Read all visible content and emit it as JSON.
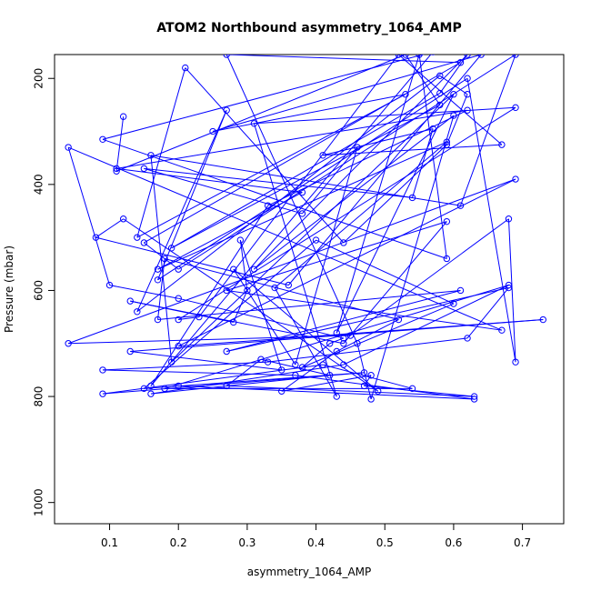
{
  "chart_data": {
    "type": "line",
    "title": "ATOM2 Northbound asymmetry_1064_AMP",
    "xlabel": "asymmetry_1064_AMP",
    "ylabel": "Pressure (mbar)",
    "xlim": [
      0.02,
      0.76
    ],
    "ylim": [
      1040,
      155
    ],
    "y_reversed": true,
    "x_ticks": [
      0.1,
      0.2,
      0.3,
      0.4,
      0.5,
      0.6,
      0.7
    ],
    "x_tick_labels": [
      "0.1",
      "0.2",
      "0.3",
      "0.4",
      "0.5",
      "0.6",
      "0.7"
    ],
    "y_ticks": [
      200,
      400,
      600,
      800,
      1000
    ],
    "y_tick_labels": [
      "200",
      "400",
      "600",
      "800",
      "1000"
    ],
    "grid": false,
    "series": [
      {
        "color": "#0000ff",
        "marker": "open-circle",
        "x": [
          0.12,
          0.11,
          0.53,
          0.58,
          0.19,
          0.58,
          0.62,
          0.31,
          0.6,
          0.48,
          0.46,
          0.27,
          0.61,
          0.15,
          0.2,
          0.69,
          0.61,
          0.16,
          0.19,
          0.6,
          0.43,
          0.55,
          0.59,
          0.09,
          0.57,
          0.16,
          0.33,
          0.62,
          0.11,
          0.38,
          0.17,
          0.59,
          0.34,
          0.43,
          0.31,
          0.69,
          0.2,
          0.23,
          0.52,
          0.67,
          0.41,
          0.57,
          0.54,
          0.15,
          0.38,
          0.46,
          0.37,
          0.28,
          0.49,
          0.12,
          0.08,
          0.36,
          0.64,
          0.25,
          0.53,
          0.14,
          0.21,
          0.44,
          0.59,
          0.62,
          0.58,
          0.14,
          0.27,
          0.17,
          0.62,
          0.69,
          0.68,
          0.45,
          0.04,
          0.69,
          0.2,
          0.73,
          0.13,
          0.35,
          0.29,
          0.3,
          0.28,
          0.13,
          0.44,
          0.59,
          0.27,
          0.67,
          0.04,
          0.1,
          0.2,
          0.44,
          0.42,
          0.38,
          0.6,
          0.4,
          0.15,
          0.47,
          0.09,
          0.41,
          0.54,
          0.18,
          0.68,
          0.44,
          0.16,
          0.42,
          0.32,
          0.27,
          0.63,
          0.47,
          0.48,
          0.35,
          0.43,
          0.52,
          0.18,
          0.17,
          0.61,
          0.27,
          0.68,
          0.62,
          0.33,
          0.09,
          0.37,
          0.63,
          0.2
        ],
        "y": [
          272,
          375,
          155,
          250,
          520,
          228,
          155,
          560,
          270,
          805,
          700,
          155,
          170,
          510,
          560,
          155,
          440,
          345,
          735,
          230,
          680,
          155,
          540,
          315,
          150,
          780,
          440,
          260,
          370,
          415,
          560,
          320,
          595,
          800,
          285,
          255,
          655,
          650,
          155,
          325,
          345,
          295,
          425,
          370,
          455,
          330,
          740,
          560,
          790,
          465,
          500,
          590,
          155,
          300,
          230,
          500,
          180,
          510,
          325,
          230,
          195,
          640,
          260,
          580,
          200,
          735,
          465,
          685,
          700,
          390,
          705,
          655,
          715,
          750,
          505,
          600,
          660,
          620,
          700,
          470,
          600,
          675,
          330,
          590,
          615,
          690,
          700,
          745,
          625,
          505,
          785,
          755,
          795,
          740,
          785,
          785,
          590,
          740,
          795,
          760,
          730,
          780,
          800,
          780,
          760,
          790,
          715,
          655,
          540,
          655,
          600,
          715,
          595,
          690,
          735,
          750,
          760,
          805,
          780
        ]
      }
    ]
  }
}
